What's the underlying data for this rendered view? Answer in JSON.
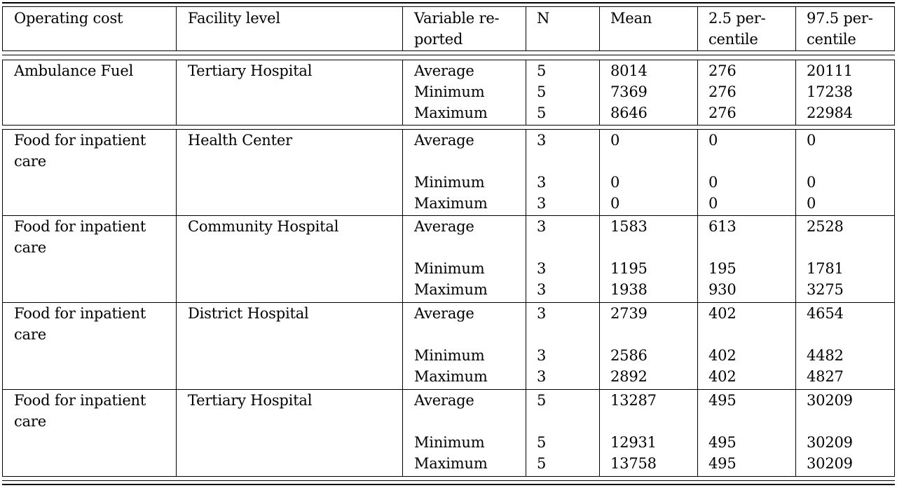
{
  "header": {
    "cells": [
      {
        "lines": [
          "Operating cost"
        ]
      },
      {
        "lines": [
          "Facility level"
        ]
      },
      {
        "lines": [
          "Variable re-",
          "ported"
        ]
      },
      {
        "lines": [
          "N"
        ]
      },
      {
        "lines": [
          "Mean"
        ]
      },
      {
        "lines": [
          "2.5 per-",
          "centile"
        ]
      },
      {
        "lines": [
          "97.5 per-",
          "centile"
        ]
      }
    ]
  },
  "groups": [
    {
      "operating_cost": [
        "Ambulance Fuel"
      ],
      "facility": "Tertiary Hospital",
      "rows": [
        {
          "variable": "Average",
          "n": "5",
          "mean": "8014",
          "p2_5": "276",
          "p97_5": "20111"
        },
        {
          "variable": "Minimum",
          "n": "5",
          "mean": "7369",
          "p2_5": "276",
          "p97_5": "17238"
        },
        {
          "variable": "Maximum",
          "n": "5",
          "mean": "8646",
          "p2_5": "276",
          "p97_5": "22984"
        }
      ]
    },
    {
      "operating_cost": [
        "Food for inpatient",
        "care"
      ],
      "facility": "Health Center",
      "rows": [
        {
          "variable": "Average",
          "n": "3",
          "mean": "0",
          "p2_5": "0",
          "p97_5": "0"
        },
        {
          "variable": "Minimum",
          "n": "3",
          "mean": "0",
          "p2_5": "0",
          "p97_5": "0"
        },
        {
          "variable": "Maximum",
          "n": "3",
          "mean": "0",
          "p2_5": "0",
          "p97_5": "0"
        }
      ]
    },
    {
      "operating_cost": [
        "Food for inpatient",
        "care"
      ],
      "facility": "Community Hospital",
      "rows": [
        {
          "variable": "Average",
          "n": "3",
          "mean": "1583",
          "p2_5": "613",
          "p97_5": "2528"
        },
        {
          "variable": "Minimum",
          "n": "3",
          "mean": "1195",
          "p2_5": "195",
          "p97_5": "1781"
        },
        {
          "variable": "Maximum",
          "n": "3",
          "mean": "1938",
          "p2_5": "930",
          "p97_5": "3275"
        }
      ]
    },
    {
      "operating_cost": [
        "Food for inpatient",
        "care"
      ],
      "facility": "District Hospital",
      "rows": [
        {
          "variable": "Average",
          "n": "3",
          "mean": "2739",
          "p2_5": "402",
          "p97_5": "4654"
        },
        {
          "variable": "Minimum",
          "n": "3",
          "mean": "2586",
          "p2_5": "402",
          "p97_5": "4482"
        },
        {
          "variable": "Maximum",
          "n": "3",
          "mean": "2892",
          "p2_5": "402",
          "p97_5": "4827"
        }
      ]
    },
    {
      "operating_cost": [
        "Food for inpatient",
        "care"
      ],
      "facility": "Tertiary Hospital",
      "rows": [
        {
          "variable": "Average",
          "n": "5",
          "mean": "13287",
          "p2_5": "495",
          "p97_5": "30209"
        },
        {
          "variable": "Minimum",
          "n": "5",
          "mean": "12931",
          "p2_5": "495",
          "p97_5": "30209"
        },
        {
          "variable": "Maximum",
          "n": "5",
          "mean": "13758",
          "p2_5": "495",
          "p97_5": "30209"
        }
      ]
    }
  ]
}
